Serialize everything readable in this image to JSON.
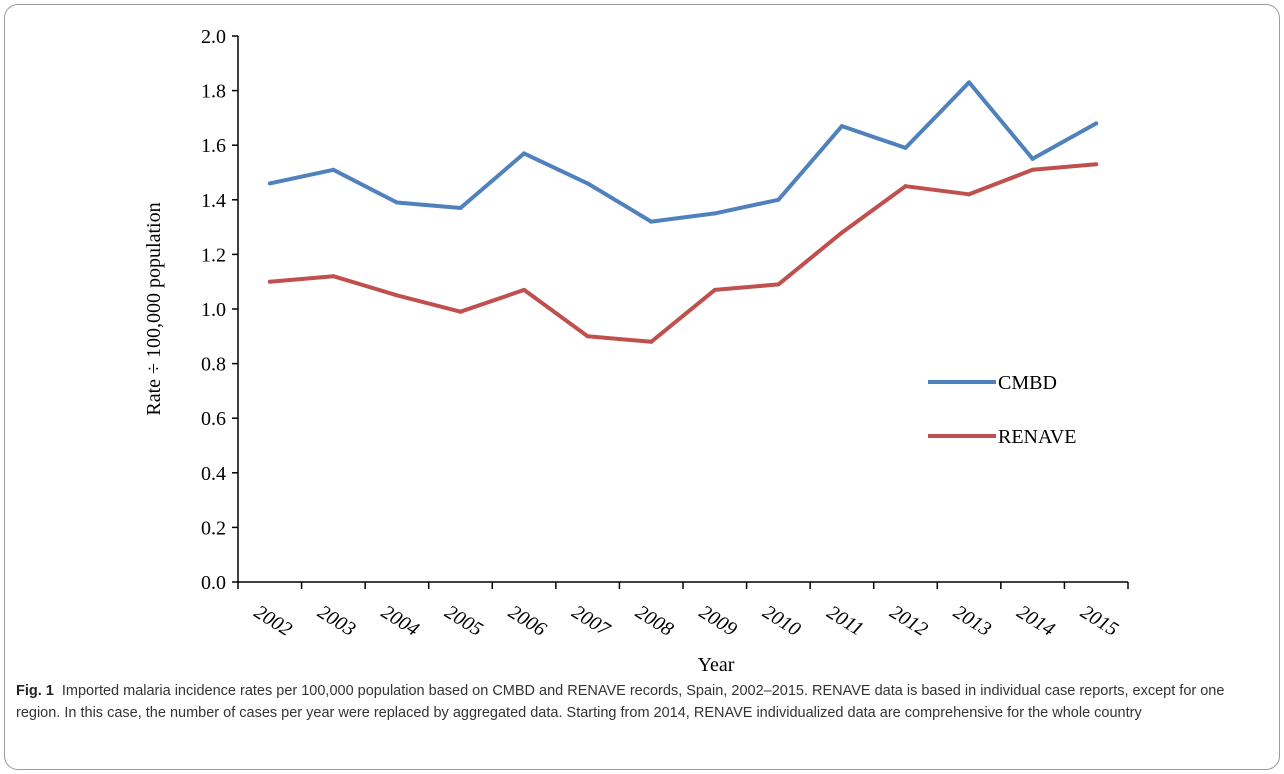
{
  "chart_data": {
    "type": "line",
    "title": "",
    "xlabel": "Year",
    "ylabel": "Rate ÷ 100,000 population",
    "ylim": [
      0.0,
      2.0
    ],
    "yticks": [
      "0.0",
      "0.2",
      "0.4",
      "0.6",
      "0.8",
      "1.0",
      "1.2",
      "1.4",
      "1.6",
      "1.8",
      "2.0"
    ],
    "categories": [
      "2002",
      "2003",
      "2004",
      "2005",
      "2006",
      "2007",
      "2008",
      "2009",
      "2010",
      "2011",
      "2012",
      "2013",
      "2014",
      "2015"
    ],
    "grid": false,
    "legend_position": "right",
    "series": [
      {
        "name": "CMBD",
        "color": "#4f81bd",
        "values": [
          1.46,
          1.51,
          1.39,
          1.37,
          1.57,
          1.46,
          1.32,
          1.35,
          1.4,
          1.67,
          1.59,
          1.83,
          1.55,
          1.68
        ]
      },
      {
        "name": "RENAVE",
        "color": "#c0504d",
        "values": [
          1.1,
          1.12,
          1.05,
          0.99,
          1.07,
          0.9,
          0.88,
          1.07,
          1.09,
          1.28,
          1.45,
          1.42,
          1.51,
          1.53
        ]
      }
    ]
  },
  "caption": {
    "label": "Fig. 1",
    "text": "Imported malaria incidence rates per 100,000 population based on CMBD and RENAVE records, Spain, 2002–2015. RENAVE data is based in individual case reports, except for one region. In this case, the number of cases per year were replaced by aggregated data. Starting from 2014, RENAVE individualized data are comprehensive for the whole country"
  }
}
